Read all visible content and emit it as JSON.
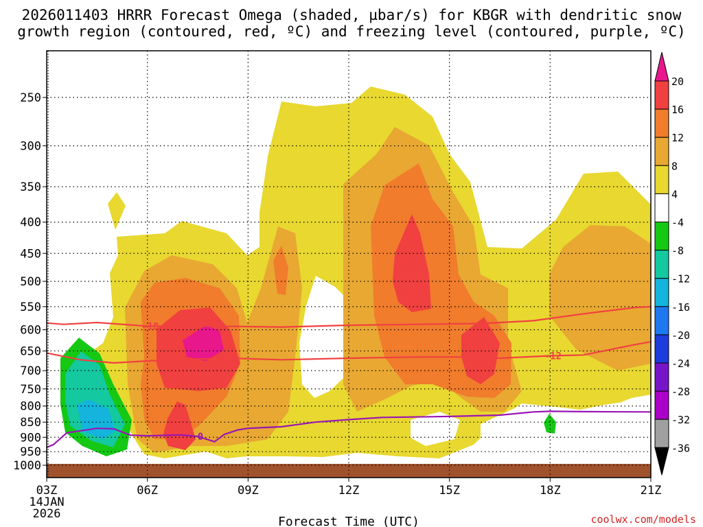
{
  "chart_data": {
    "type": "heatmap",
    "title_lines": [
      "2026011403 HRRR Forecast Omega (shaded, µbar/s) for KBGR with dendritic snow",
      "growth region (contoured, red, ºC) and freezing level (contoured, purple, ºC)"
    ],
    "xlabel": "Forecast Time (UTC)",
    "x_ticks": [
      "03Z",
      "06Z",
      "09Z",
      "12Z",
      "15Z",
      "18Z",
      "21Z"
    ],
    "x_sub_labels": [
      "14JAN",
      "2026"
    ],
    "y_ticks": [
      250,
      300,
      350,
      400,
      450,
      500,
      550,
      600,
      650,
      700,
      750,
      800,
      850,
      900,
      950,
      1000
    ],
    "ylim": [
      1000,
      200
    ],
    "xlim": [
      3,
      21
    ],
    "grid": true,
    "colorbar": {
      "ticks": [
        "20",
        "16",
        "12",
        "8",
        "4",
        "-4",
        "-8",
        "-12",
        "-16",
        "-20",
        "-24",
        "-28",
        "-32",
        "-36"
      ],
      "colors": [
        "#e8178c",
        "#f04040",
        "#f07c2c",
        "#e8a832",
        "#e8d830",
        "#ffffff",
        "#14c814",
        "#14c8a0",
        "#14b4dc",
        "#1e78f0",
        "#1e3cdc",
        "#7814c8",
        "#aa00c8",
        "#a0a0a0",
        "#000000"
      ]
    },
    "contours": [
      {
        "name": "dendritic-upper",
        "color": "#f04040",
        "label": "-18",
        "points": [
          [
            3,
            585
          ],
          [
            3.5,
            588
          ],
          [
            4.5,
            584
          ],
          [
            6,
            592
          ],
          [
            8,
            592
          ],
          [
            10,
            594
          ],
          [
            12,
            590
          ],
          [
            14,
            588
          ],
          [
            16,
            586
          ],
          [
            17.5,
            580
          ],
          [
            19,
            565
          ],
          [
            20.5,
            552
          ],
          [
            21,
            550
          ]
        ]
      },
      {
        "name": "dendritic-lower",
        "color": "#f04040",
        "label": "-12",
        "points": [
          [
            3,
            655
          ],
          [
            4,
            672
          ],
          [
            5,
            680
          ],
          [
            6,
            675
          ],
          [
            7.5,
            670
          ],
          [
            8.5,
            668
          ],
          [
            10,
            672
          ],
          [
            12,
            668
          ],
          [
            14,
            665
          ],
          [
            15.5,
            665
          ],
          [
            16.5,
            668
          ],
          [
            18,
            662
          ],
          [
            19,
            660
          ],
          [
            20.5,
            635
          ],
          [
            21,
            628
          ]
        ]
      },
      {
        "name": "freezing-level",
        "color": "#9a14b4",
        "label": "0",
        "points": [
          [
            3,
            935
          ],
          [
            3.2,
            925
          ],
          [
            3.6,
            885
          ],
          [
            4.5,
            870
          ],
          [
            5,
            872
          ],
          [
            5.5,
            893
          ],
          [
            6,
            895
          ],
          [
            7,
            892
          ],
          [
            7.5,
            897
          ],
          [
            8,
            915
          ],
          [
            8.3,
            890
          ],
          [
            8.7,
            875
          ],
          [
            9,
            870
          ],
          [
            10,
            865
          ],
          [
            11,
            850
          ],
          [
            12,
            842
          ],
          [
            13,
            835
          ],
          [
            15,
            832
          ],
          [
            16.5,
            828
          ],
          [
            17.5,
            818
          ],
          [
            18,
            816
          ],
          [
            19,
            817
          ],
          [
            21,
            818
          ]
        ]
      }
    ],
    "surface_color": "#a0522d"
  },
  "credit": "coolwx.com/models"
}
